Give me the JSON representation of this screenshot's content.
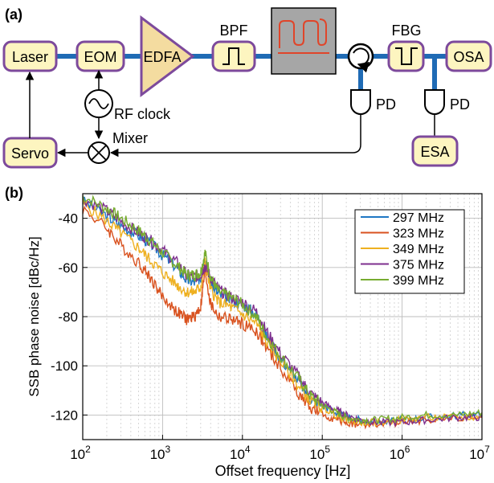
{
  "panel_a": {
    "label": "(a)",
    "blocks": {
      "laser": "Laser",
      "eom": "EOM",
      "edfa": "EDFA",
      "bpf": "BPF",
      "fbg": "FBG",
      "osa": "OSA",
      "pd1": "PD",
      "pd2": "PD",
      "rf_clock": "RF clock",
      "mixer": "Mixer",
      "servo": "Servo",
      "esa": "ESA"
    },
    "colors": {
      "block_fill": "#fdf5c0",
      "block_border": "#7d4a9c",
      "fiber": "#1f6bb5",
      "edfa_fill": "#f4dca0",
      "resonator_fill": "#a6a6a6",
      "resonator_trace": "#e0452a"
    }
  },
  "panel_b": {
    "label": "(b)"
  },
  "chart_data": {
    "type": "line",
    "xlabel": "Offset frequency [Hz]",
    "ylabel": "SSB phase noise [dBc/Hz]",
    "xscale": "log",
    "xlim": [
      100,
      10000000
    ],
    "ylim": [
      -130,
      -30
    ],
    "xticks": [
      {
        "base": "10",
        "exp": "2"
      },
      {
        "base": "10",
        "exp": "3"
      },
      {
        "base": "10",
        "exp": "4"
      },
      {
        "base": "10",
        "exp": "5"
      },
      {
        "base": "10",
        "exp": "6"
      },
      {
        "base": "10",
        "exp": "7"
      }
    ],
    "yticks": [
      -40,
      -60,
      -80,
      -100,
      -120
    ],
    "grid": true,
    "legend_position": "top-right",
    "series": [
      {
        "name": "297 MHz",
        "color": "#1f77c4",
        "x": [
          100,
          200,
          300,
          500,
          700,
          1000,
          1500,
          2000,
          2500,
          3000,
          3400,
          4000,
          5000,
          7000,
          10000,
          15000,
          20000,
          30000,
          50000,
          70000,
          100000,
          150000,
          200000,
          300000,
          500000,
          1000000,
          2000000,
          5000000,
          10000000
        ],
        "y": [
          -33,
          -39,
          -43,
          -47,
          -50,
          -55,
          -60,
          -65,
          -66,
          -64,
          -56,
          -66,
          -71,
          -73,
          -75,
          -79,
          -88,
          -97,
          -106,
          -113,
          -116,
          -119,
          -121,
          -122,
          -123,
          -122,
          -121,
          -120,
          -120
        ]
      },
      {
        "name": "323 MHz",
        "color": "#d9521f",
        "x": [
          100,
          200,
          300,
          500,
          700,
          1000,
          1500,
          2000,
          2500,
          3000,
          3400,
          4000,
          5000,
          7000,
          10000,
          15000,
          20000,
          30000,
          50000,
          70000,
          100000,
          150000,
          200000,
          300000,
          500000,
          1000000,
          2000000,
          5000000,
          10000000
        ],
        "y": [
          -36,
          -44,
          -51,
          -58,
          -64,
          -72,
          -78,
          -81,
          -80,
          -76,
          -61,
          -75,
          -80,
          -81,
          -83,
          -86,
          -93,
          -101,
          -111,
          -117,
          -120,
          -122,
          -123,
          -124,
          -124,
          -123,
          -122,
          -121,
          -121
        ]
      },
      {
        "name": "349 MHz",
        "color": "#eeb020",
        "x": [
          100,
          200,
          300,
          500,
          700,
          1000,
          1500,
          2000,
          2500,
          3000,
          3400,
          4000,
          5000,
          7000,
          10000,
          15000,
          20000,
          30000,
          50000,
          70000,
          100000,
          150000,
          200000,
          300000,
          500000,
          1000000,
          2000000,
          5000000,
          10000000
        ],
        "y": [
          -34,
          -41,
          -46,
          -52,
          -57,
          -62,
          -67,
          -70,
          -70,
          -68,
          -58,
          -69,
          -74,
          -76,
          -79,
          -83,
          -90,
          -98,
          -108,
          -114,
          -117,
          -120,
          -122,
          -123,
          -123,
          -122,
          -121,
          -121,
          -121
        ]
      },
      {
        "name": "375 MHz",
        "color": "#7e2f8e",
        "x": [
          100,
          200,
          300,
          500,
          700,
          1000,
          1500,
          2000,
          2500,
          3000,
          3400,
          4000,
          5000,
          7000,
          10000,
          15000,
          20000,
          30000,
          50000,
          70000,
          100000,
          150000,
          200000,
          300000,
          500000,
          1000000,
          2000000,
          5000000,
          10000000
        ],
        "y": [
          -32,
          -37,
          -41,
          -46,
          -49,
          -53,
          -58,
          -63,
          -64,
          -63,
          -59,
          -64,
          -69,
          -72,
          -74,
          -78,
          -86,
          -95,
          -104,
          -111,
          -115,
          -118,
          -120,
          -122,
          -123,
          -123,
          -122,
          -121,
          -121
        ]
      },
      {
        "name": "399 MHz",
        "color": "#77ac30",
        "x": [
          100,
          200,
          300,
          500,
          700,
          1000,
          1500,
          2000,
          2500,
          3000,
          3400,
          4000,
          5000,
          7000,
          10000,
          15000,
          20000,
          30000,
          50000,
          70000,
          100000,
          150000,
          200000,
          300000,
          500000,
          1000000,
          2000000,
          5000000,
          10000000
        ],
        "y": [
          -31,
          -36,
          -40,
          -45,
          -49,
          -54,
          -59,
          -63,
          -63,
          -62,
          -54,
          -64,
          -70,
          -72,
          -75,
          -80,
          -88,
          -96,
          -105,
          -112,
          -116,
          -119,
          -121,
          -122,
          -122,
          -121,
          -120,
          -120,
          -119
        ]
      }
    ]
  }
}
